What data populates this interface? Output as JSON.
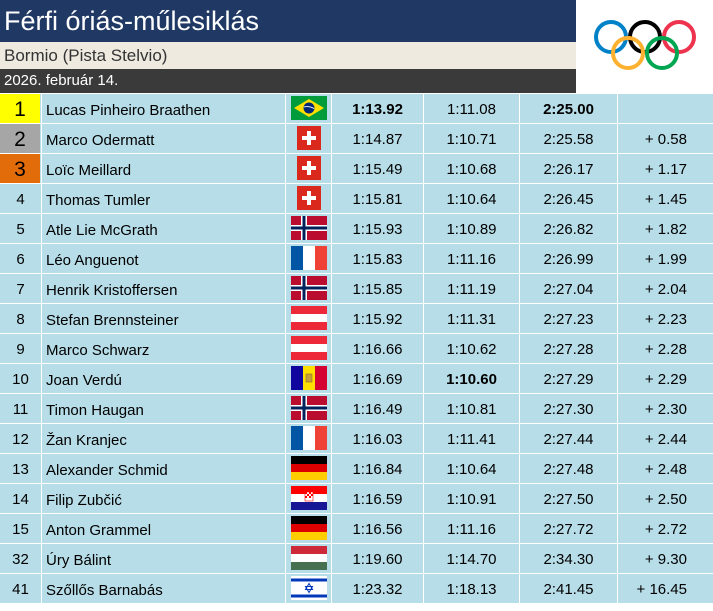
{
  "header": {
    "title": "Férfi óriás-műlesiklás",
    "venue": "Bormio (Pista Stelvio)",
    "date": "2026. február 14."
  },
  "medal_colors": {
    "gold": "#ffff00",
    "silver": "#a6a6a6",
    "bronze": "#e36c0a"
  },
  "row_color": "#b7dde8",
  "results": [
    {
      "rank": "1",
      "name": "Lucas Pinheiro Braathen",
      "flag": "brazil",
      "run1": "1:13.92",
      "run2": "1:11.08",
      "total": "2:25.00",
      "diff": "",
      "medal": "gold",
      "bold_run1": true,
      "bold_run2": false,
      "bold_total": true
    },
    {
      "rank": "2",
      "name": "Marco Odermatt",
      "flag": "switzerland",
      "run1": "1:14.87",
      "run2": "1:10.71",
      "total": "2:25.58",
      "diff": "+ 0.58",
      "medal": "silver"
    },
    {
      "rank": "3",
      "name": "Loïc Meillard",
      "flag": "switzerland",
      "run1": "1:15.49",
      "run2": "1:10.68",
      "total": "2:26.17",
      "diff": "+ 1.17",
      "medal": "bronze"
    },
    {
      "rank": "4",
      "name": "Thomas Tumler",
      "flag": "switzerland",
      "run1": "1:15.81",
      "run2": "1:10.64",
      "total": "2:26.45",
      "diff": "+ 1.45"
    },
    {
      "rank": "5",
      "name": "Atle Lie McGrath",
      "flag": "norway",
      "run1": "1:15.93",
      "run2": "1:10.89",
      "total": "2:26.82",
      "diff": "+ 1.82"
    },
    {
      "rank": "6",
      "name": "Léo Anguenot",
      "flag": "france",
      "run1": "1:15.83",
      "run2": "1:11.16",
      "total": "2:26.99",
      "diff": "+ 1.99"
    },
    {
      "rank": "7",
      "name": "Henrik Kristoffersen",
      "flag": "norway",
      "run1": "1:15.85",
      "run2": "1:11.19",
      "total": "2:27.04",
      "diff": "+ 2.04"
    },
    {
      "rank": "8",
      "name": "Stefan Brennsteiner",
      "flag": "austria",
      "run1": "1:15.92",
      "run2": "1:11.31",
      "total": "2:27.23",
      "diff": "+ 2.23"
    },
    {
      "rank": "9",
      "name": "Marco Schwarz",
      "flag": "austria",
      "run1": "1:16.66",
      "run2": "1:10.62",
      "total": "2:27.28",
      "diff": "+ 2.28"
    },
    {
      "rank": "10",
      "name": "Joan Verdú",
      "flag": "andorra",
      "run1": "1:16.69",
      "run2": "1:10.60",
      "total": "2:27.29",
      "diff": "+ 2.29",
      "bold_run2": true
    },
    {
      "rank": "11",
      "name": "Timon Haugan",
      "flag": "norway",
      "run1": "1:16.49",
      "run2": "1:10.81",
      "total": "2:27.30",
      "diff": "+ 2.30"
    },
    {
      "rank": "12",
      "name": "Žan Kranjec",
      "flag": "france",
      "run1": "1:16.03",
      "run2": "1:11.41",
      "total": "2:27.44",
      "diff": "+ 2.44"
    },
    {
      "rank": "13",
      "name": "Alexander Schmid",
      "flag": "germany",
      "run1": "1:16.84",
      "run2": "1:10.64",
      "total": "2:27.48",
      "diff": "+ 2.48"
    },
    {
      "rank": "14",
      "name": "Filip Zubčić",
      "flag": "croatia",
      "run1": "1:16.59",
      "run2": "1:10.91",
      "total": "2:27.50",
      "diff": "+ 2.50"
    },
    {
      "rank": "15",
      "name": "Anton Grammel",
      "flag": "germany",
      "run1": "1:16.56",
      "run2": "1:11.16",
      "total": "2:27.72",
      "diff": "+ 2.72"
    },
    {
      "rank": "32",
      "name": "Úry Bálint",
      "flag": "hungary",
      "run1": "1:19.60",
      "run2": "1:14.70",
      "total": "2:34.30",
      "diff": "+ 9.30"
    },
    {
      "rank": "41",
      "name": "Szőllős Barnabás",
      "flag": "israel",
      "run1": "1:23.32",
      "run2": "1:18.13",
      "total": "2:41.45",
      "diff": "+ 16.45"
    }
  ]
}
